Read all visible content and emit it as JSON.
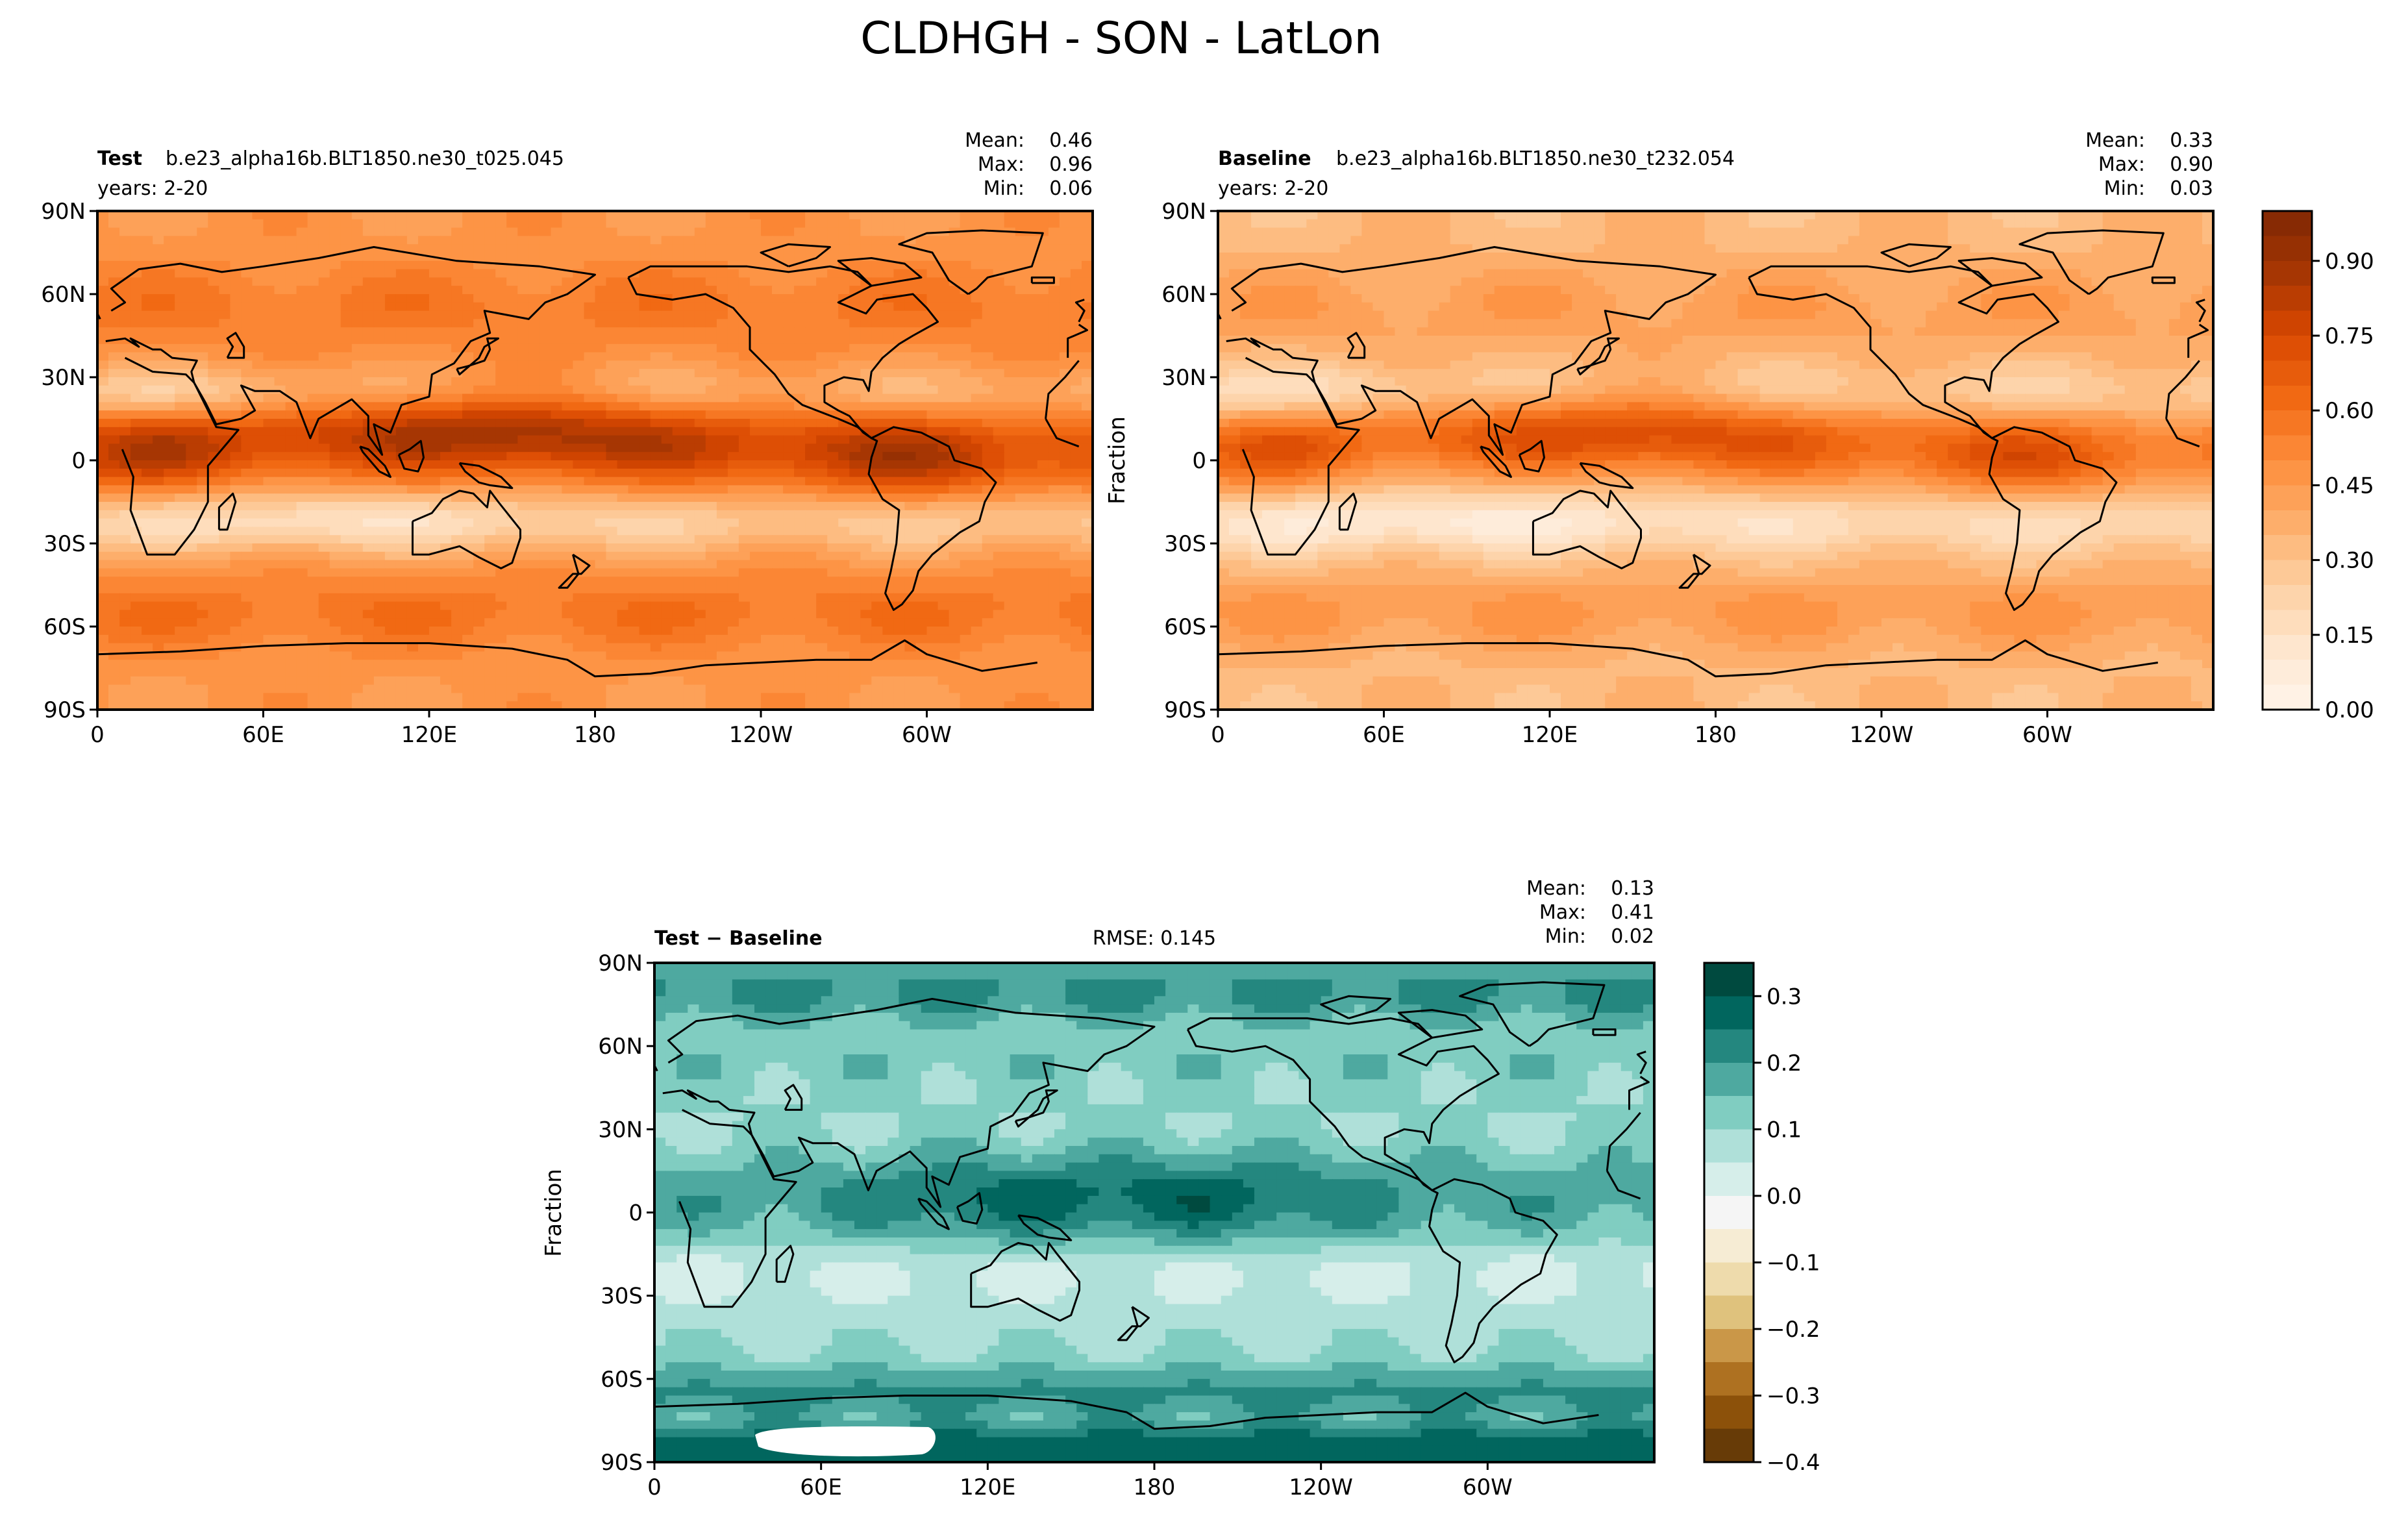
{
  "figure": {
    "title": "CLDHGH - SON - LatLon"
  },
  "colors": {
    "orange_scale": [
      "#fff5eb",
      "#fee6ce",
      "#fdd0a2",
      "#fdae6b",
      "#fd8d3c",
      "#f16913",
      "#d94801",
      "#a63603",
      "#7f2704"
    ],
    "diverging_scale": [
      "#543005",
      "#8c510a",
      "#bf812d",
      "#dfc27d",
      "#f6e8c3",
      "#f5f5f5",
      "#c7eae5",
      "#80cdc1",
      "#35978f",
      "#01665e",
      "#003c30"
    ],
    "coastline": "#000000"
  },
  "chart_data": [
    {
      "type": "heatmap",
      "name_label": "Test",
      "case": "b.e23_alpha16b.BLT1850.ne30_t025.045",
      "years": "years: 2-20",
      "stats": {
        "mean_label": "Mean:",
        "mean": "0.46",
        "max_label": "Max:",
        "max": "0.96",
        "min_label": "Min:",
        "min": "0.06"
      },
      "xticks": [
        "0",
        "60E",
        "120E",
        "180",
        "120W",
        "60W"
      ],
      "yticks": [
        "90N",
        "60N",
        "30N",
        "0",
        "30S",
        "60S",
        "90S"
      ],
      "xlim": [
        0,
        360
      ],
      "ylim": [
        -90,
        90
      ],
      "field": {
        "min": 0.06,
        "max": 0.96,
        "mean": 0.46,
        "itcz_peak": 0.9,
        "subtropic_low": 0.15
      }
    },
    {
      "type": "heatmap",
      "name_label": "Baseline",
      "case": "b.e23_alpha16b.BLT1850.ne30_t232.054",
      "years": "years: 2-20",
      "stats": {
        "mean_label": "Mean:",
        "mean": "0.33",
        "max_label": "Max:",
        "max": "0.90",
        "min_label": "Min:",
        "min": "0.03"
      },
      "xticks": [
        "0",
        "60E",
        "120E",
        "180",
        "120W",
        "60W"
      ],
      "yticks": [
        "90N",
        "60N",
        "30N",
        "0",
        "30S",
        "60S",
        "90S"
      ],
      "ylabel": "Fraction",
      "xlim": [
        0,
        360
      ],
      "ylim": [
        -90,
        90
      ],
      "field": {
        "min": 0.03,
        "max": 0.9,
        "mean": 0.33,
        "itcz_peak": 0.75,
        "subtropic_low": 0.08
      },
      "colorbar": {
        "ticks": [
          "0.00",
          "0.15",
          "0.30",
          "0.45",
          "0.60",
          "0.75",
          "0.90"
        ],
        "range": [
          0.0,
          1.0
        ]
      }
    },
    {
      "type": "heatmap",
      "name_label": "Test − Baseline",
      "rmse": "RMSE: 0.145",
      "stats": {
        "mean_label": "Mean:",
        "mean": "0.13",
        "max_label": "Max:",
        "max": "0.41",
        "min_label": "Min:",
        "min": "0.02"
      },
      "xticks": [
        "0",
        "60E",
        "120E",
        "180",
        "120W",
        "60W"
      ],
      "yticks": [
        "90N",
        "60N",
        "30N",
        "0",
        "30S",
        "60S",
        "90S"
      ],
      "ylabel": "Fraction",
      "xlim": [
        0,
        360
      ],
      "ylim": [
        -90,
        90
      ],
      "field": {
        "min": 0.02,
        "max": 0.41,
        "mean": 0.13
      },
      "colorbar": {
        "ticks": [
          "0.3",
          "0.2",
          "0.1",
          "0.0",
          "−0.1",
          "−0.2",
          "−0.3",
          "−0.4"
        ],
        "range": [
          -0.4,
          0.35
        ]
      }
    }
  ]
}
